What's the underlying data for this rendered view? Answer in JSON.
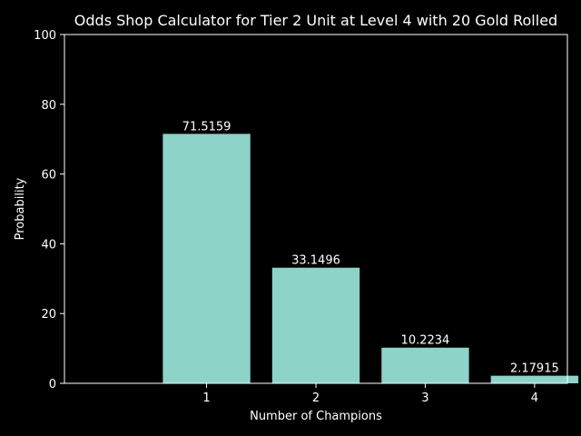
{
  "chart_data": {
    "type": "bar",
    "title": "Odds Shop Calculator for Tier 2 Unit at Level 4 with 20 Gold Rolled",
    "xlabel": "Number of Champions",
    "ylabel": "Probability",
    "categories": [
      "1",
      "2",
      "3",
      "4"
    ],
    "values": [
      71.5159,
      33.1496,
      10.2234,
      2.17915
    ],
    "value_labels": [
      "71.5159",
      "33.1496",
      "10.2234",
      "2.17915"
    ],
    "ylim": [
      0,
      100
    ],
    "yticks": [
      "0",
      "20",
      "40",
      "60",
      "80",
      "100"
    ],
    "bar_color": "#8dd3c7",
    "background": "#000000",
    "grid": false,
    "legend": "none"
  }
}
